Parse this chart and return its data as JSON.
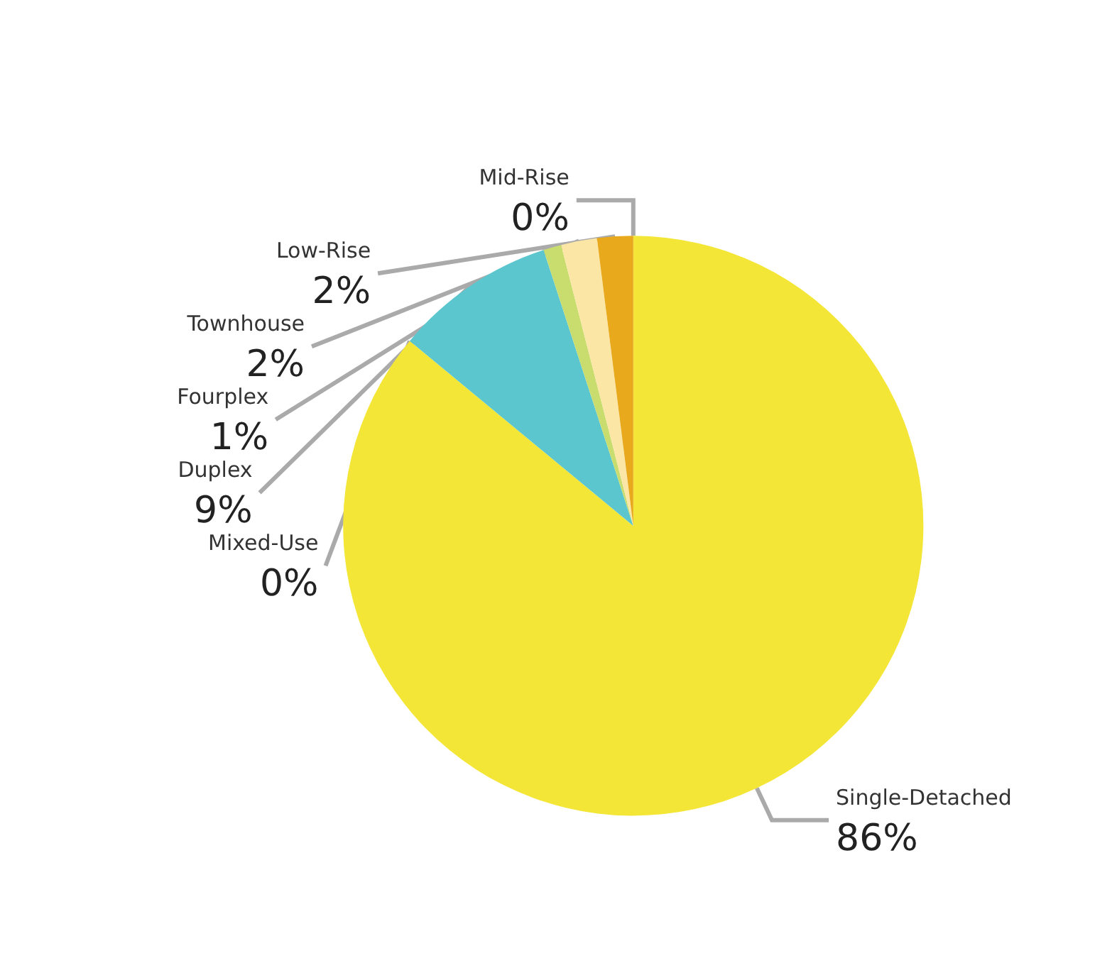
{
  "chart_data": {
    "type": "pie",
    "categories": [
      "Mid-Rise",
      "Single-Detached",
      "Mixed-Use",
      "Duplex",
      "Fourplex",
      "Townhouse",
      "Low-Rise"
    ],
    "values": [
      0,
      86,
      0,
      9,
      1,
      2,
      2
    ],
    "colors": [
      "#e07b1a",
      "#f4e637",
      "#9fd9dc",
      "#5cc6cf",
      "#c9dd6e",
      "#fbe6a6",
      "#e9a91c"
    ],
    "value_labels": [
      "0%",
      "86%",
      "0%",
      "9%",
      "1%",
      "2%",
      "2%"
    ],
    "legend": false
  }
}
